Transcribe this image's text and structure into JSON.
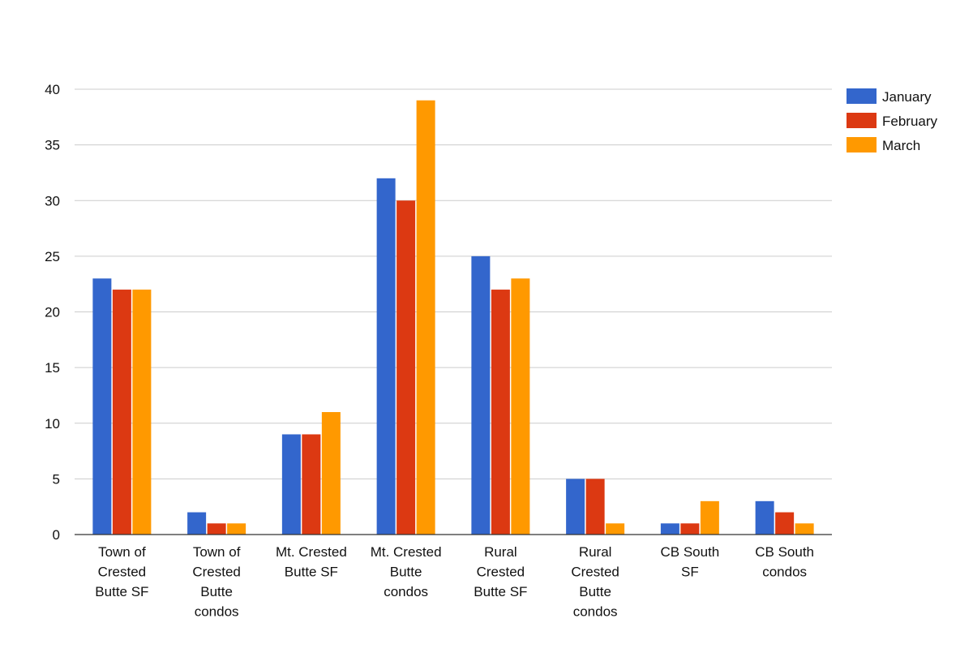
{
  "chart_data": {
    "type": "bar",
    "title": "",
    "xlabel": "",
    "ylabel": "",
    "ylim": [
      0,
      40
    ],
    "yticks": [
      0,
      5,
      10,
      15,
      20,
      25,
      30,
      35,
      40
    ],
    "grid": true,
    "legend_position": "top-right",
    "categories": [
      [
        "Town of",
        "Crested",
        "Butte SF"
      ],
      [
        "Town of",
        "Crested",
        "Butte",
        "condos"
      ],
      [
        "Mt. Crested",
        "Butte SF"
      ],
      [
        "Mt. Crested",
        "Butte",
        "condos"
      ],
      [
        "Rural",
        "Crested",
        "Butte SF"
      ],
      [
        "Rural",
        "Crested",
        "Butte",
        "condos"
      ],
      [
        "CB South",
        "SF"
      ],
      [
        "CB South",
        "condos"
      ]
    ],
    "series": [
      {
        "name": "January",
        "color": "#3366cc",
        "values": [
          23,
          2,
          9,
          32,
          25,
          5,
          1,
          3
        ]
      },
      {
        "name": "February",
        "color": "#dc3912",
        "values": [
          22,
          1,
          9,
          30,
          22,
          5,
          1,
          2
        ]
      },
      {
        "name": "March",
        "color": "#ff9900",
        "values": [
          22,
          1,
          11,
          39,
          23,
          1,
          3,
          1
        ]
      }
    ]
  }
}
